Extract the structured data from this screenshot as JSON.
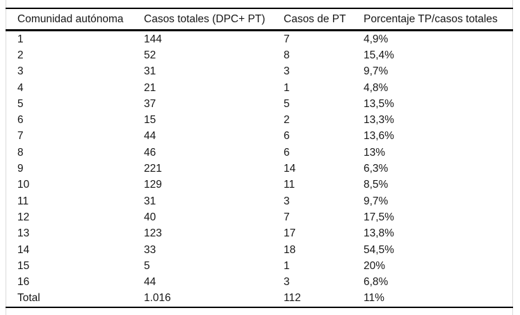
{
  "page": {
    "background_color": "#ffffff",
    "edge_line_color": "#d9d9d9",
    "rule_color": "#000000",
    "text_color": "#161616"
  },
  "table": {
    "headers": [
      "Comunidad autónoma",
      "Casos totales (DPC+ PT)",
      "Casos de PT",
      "Porcentaje TP/casos totales"
    ],
    "rows": [
      [
        "1",
        "144",
        "7",
        "4,9%"
      ],
      [
        "2",
        "52",
        "8",
        "15,4%"
      ],
      [
        "3",
        "31",
        "3",
        "9,7%"
      ],
      [
        "4",
        "21",
        "1",
        "4,8%"
      ],
      [
        "5",
        "37",
        "5",
        "13,5%"
      ],
      [
        "6",
        "15",
        "2",
        "13,3%"
      ],
      [
        "7",
        "44",
        "6",
        "13,6%"
      ],
      [
        "8",
        "46",
        "6",
        "13%"
      ],
      [
        "9",
        "221",
        "14",
        "6,3%"
      ],
      [
        "10",
        "129",
        "11",
        "8,5%"
      ],
      [
        "11",
        "31",
        "3",
        "9,7%"
      ],
      [
        "12",
        "40",
        "7",
        "17,5%"
      ],
      [
        "13",
        "123",
        "17",
        "13,8%"
      ],
      [
        "14",
        "33",
        "18",
        "54,5%"
      ],
      [
        "15",
        "5",
        "1",
        "20%"
      ],
      [
        "16",
        "44",
        "3",
        "6,8%"
      ],
      [
        "Total",
        "1.016",
        "112",
        "11%"
      ]
    ]
  }
}
